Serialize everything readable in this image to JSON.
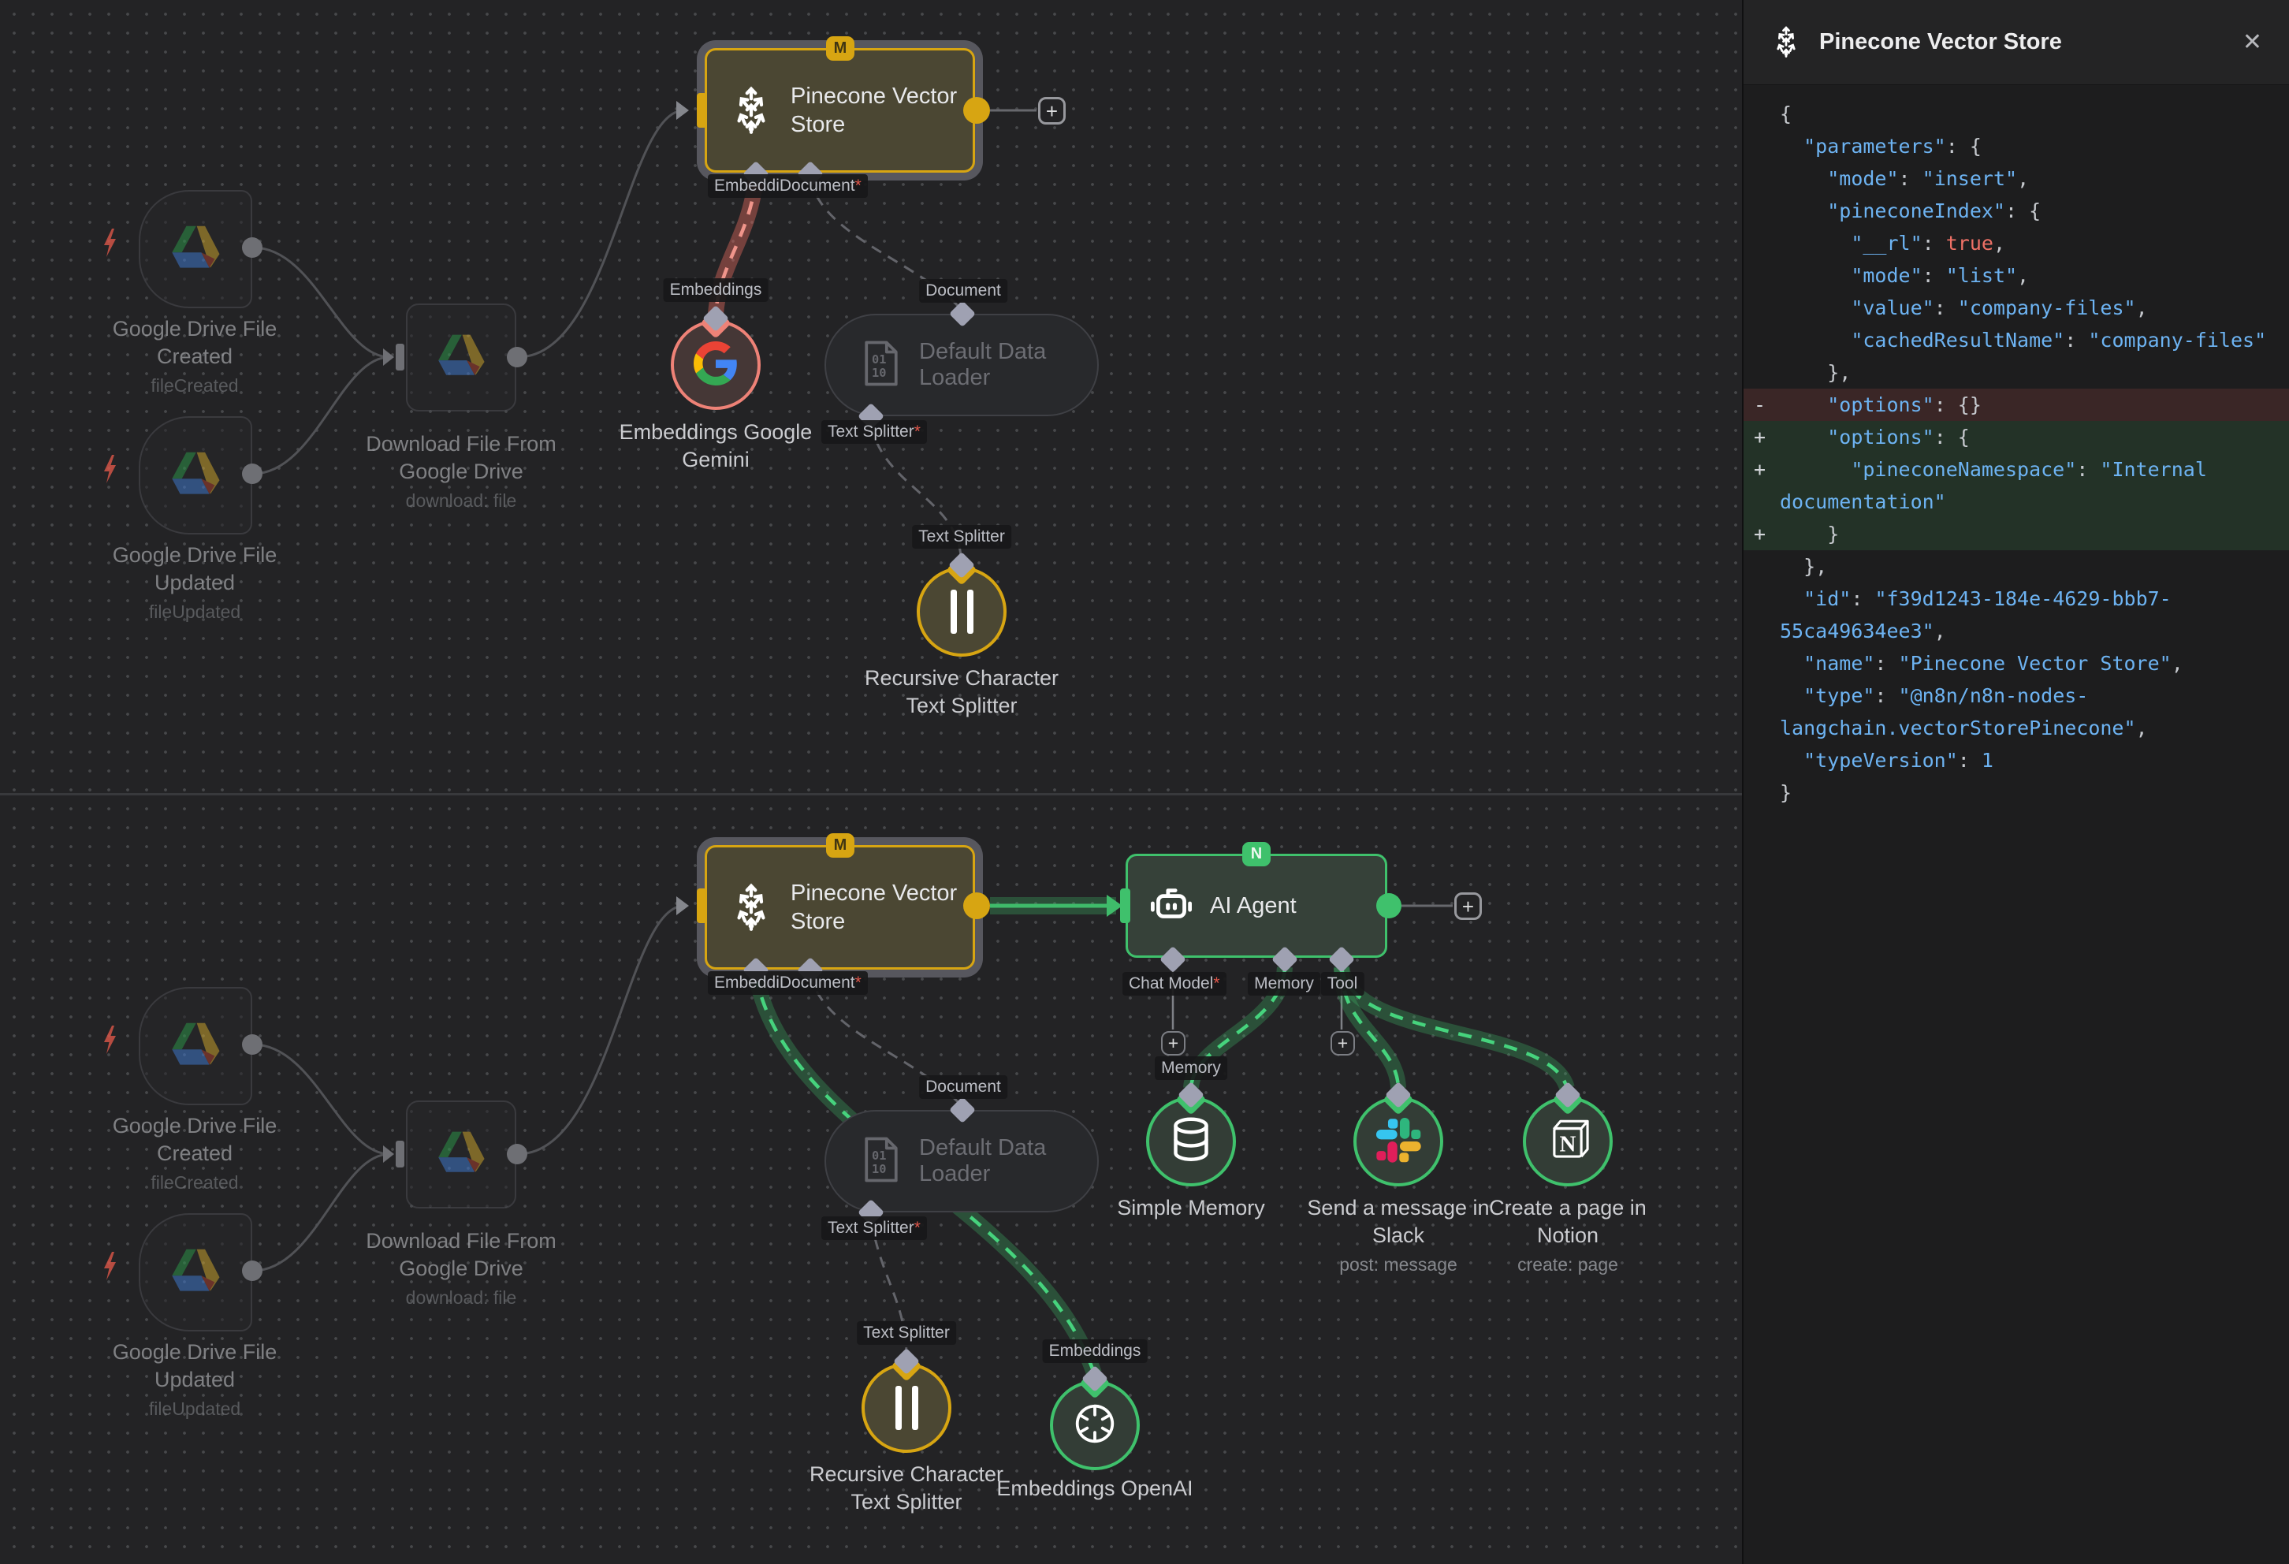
{
  "ui": {
    "plus": "+",
    "close": "✕"
  },
  "colors": {
    "accent_gold": "#d7a512",
    "accent_green": "#3fc16c",
    "accent_red": "#ee8277",
    "diff_add_bg": "#233227",
    "diff_del_bg": "#3a2626",
    "code_string": "#6db3f2",
    "code_bool": "#ef7166"
  },
  "badges": {
    "m": "M",
    "n": "N"
  },
  "panel": {
    "title": "Pinecone Vector Store",
    "code_lines": [
      {
        "t": "{"
      },
      {
        "t": "  \"parameters\": {"
      },
      {
        "t": "    \"mode\": \"insert\","
      },
      {
        "t": "    \"pineconeIndex\": {"
      },
      {
        "t": "      \"__rl\": true,"
      },
      {
        "t": "      \"mode\": \"list\","
      },
      {
        "t": "      \"value\": \"company-files\","
      },
      {
        "t": "      \"cachedResultName\": \"company-files\""
      },
      {
        "t": "    },"
      },
      {
        "t": "    \"options\": {}",
        "d": "del",
        "s": "-"
      },
      {
        "t": "    \"options\": {",
        "d": "add",
        "s": "+"
      },
      {
        "t": "      \"pineconeNamespace\": \"Internal documentation\"",
        "d": "add",
        "s": "+"
      },
      {
        "t": "    }",
        "d": "add",
        "s": "+"
      },
      {
        "t": "  },"
      },
      {
        "t": "  \"id\": \"f39d1243-184e-4629-bbb7-55ca49634ee3\","
      },
      {
        "t": "  \"name\": \"Pinecone Vector Store\","
      },
      {
        "t": "  \"type\": \"@n8n/n8n-nodes-langchain.vectorStorePinecone\","
      },
      {
        "t": "  \"typeVersion\": 1"
      },
      {
        "t": "}"
      }
    ]
  },
  "nodes": {
    "pinecone": {
      "title": "Pinecone Vector Store"
    },
    "ai_agent": {
      "title": "AI Agent"
    },
    "trigger_created": {
      "l1": "Google Drive File",
      "l2": "Created",
      "sub": "fileCreated"
    },
    "trigger_updated": {
      "l1": "Google Drive File",
      "l2": "Updated",
      "sub": "fileUpdated"
    },
    "download": {
      "l1": "Download File From",
      "l2": "Google Drive",
      "sub": "download: file"
    },
    "loader": {
      "title": "Default Data Loader"
    },
    "gemini": {
      "l1": "Embeddings Google",
      "l2": "Gemini"
    },
    "splitter": {
      "l1": "Recursive Character",
      "l2": "Text Splitter"
    },
    "memory": {
      "title": "Simple Memory"
    },
    "slack": {
      "l1": "Send a message in",
      "l2": "Slack",
      "sub": "post: message"
    },
    "notion": {
      "l1": "Create a page in",
      "l2": "Notion",
      "sub": "create: page"
    },
    "openai": {
      "title": "Embeddings OpenAI"
    }
  },
  "chips": {
    "embeddings": "Embeddings",
    "embed_document": "EmbeddiDocument",
    "document": "Document",
    "text_splitter": "Text Splitter",
    "chat_model": "Chat Model",
    "memory": "Memory",
    "tool": "Tool",
    "required_star": "*"
  }
}
